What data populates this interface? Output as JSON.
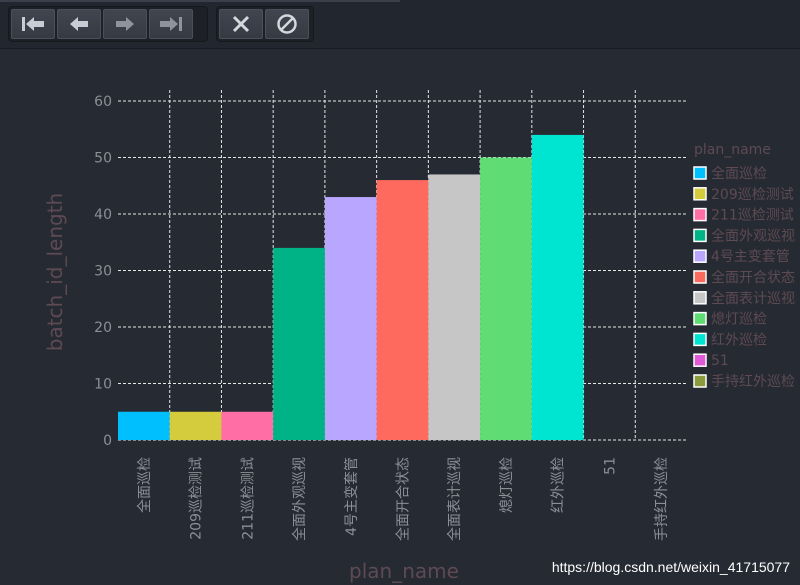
{
  "toolbar": {
    "nav_buttons": [
      {
        "icon": "first-page-icon"
      },
      {
        "icon": "arrow-left-icon"
      },
      {
        "icon": "arrow-right-icon"
      },
      {
        "icon": "last-page-icon"
      }
    ],
    "action_buttons": [
      {
        "icon": "close-icon"
      },
      {
        "icon": "cancel-icon"
      }
    ]
  },
  "watermark": "https://blog.csdn.net/weixin_41715077",
  "chart_data": {
    "type": "bar",
    "xlabel": "plan_name",
    "ylabel": "batch_id_length",
    "ylim": [
      0,
      64
    ],
    "yticks": [
      0,
      10,
      20,
      30,
      40,
      50,
      60
    ],
    "grid": true,
    "categories": [
      "全面巡检",
      "209巡检测试",
      "211巡检测试",
      "全面外观巡视",
      "4号主变套管",
      "全面开合状态",
      "全面表计巡视",
      "熄灯巡检",
      "红外巡检",
      "51",
      "手持红外巡检"
    ],
    "values": [
      5,
      5,
      5,
      34,
      43,
      46,
      47,
      50,
      54,
      0,
      0
    ],
    "colors": [
      "#00bfff",
      "#d4cc3c",
      "#ff6fa6",
      "#00b386",
      "#b9a7ff",
      "#ff6a5e",
      "#c6c6c6",
      "#5fdc73",
      "#00e5d1",
      "#e05ad8",
      "#8a9a3c"
    ],
    "legend": {
      "title": "plan_name",
      "position": "right",
      "labels": [
        "全面巡检",
        "209巡检测试",
        "211巡检测试",
        "全面外观巡视",
        "4号主变套管",
        "全面开合状态",
        "全面表计巡视",
        "熄灯巡检",
        "红外巡检",
        "51",
        "手持红外巡检"
      ]
    }
  }
}
